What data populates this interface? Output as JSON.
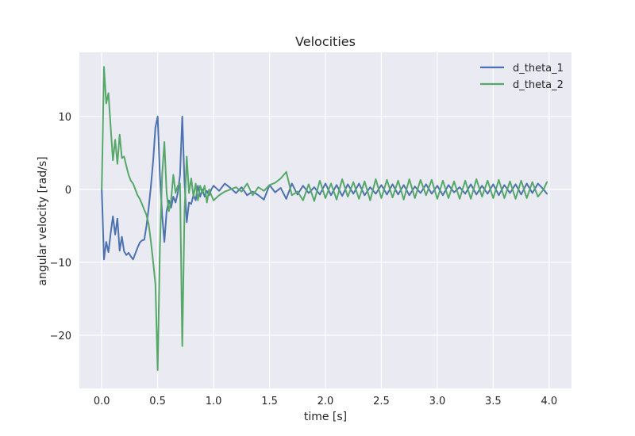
{
  "chart_data": {
    "type": "line",
    "title": "Velocities",
    "xlabel": "time [s]",
    "ylabel": "angular velocity [rad/s]",
    "xlim": [
      -0.2,
      4.2
    ],
    "ylim": [
      -27.3,
      18.8
    ],
    "xticks": [
      0.0,
      0.5,
      1.0,
      1.5,
      2.0,
      2.5,
      3.0,
      3.5,
      4.0
    ],
    "xtick_labels": [
      "0.0",
      "0.5",
      "1.0",
      "1.5",
      "2.0",
      "2.5",
      "3.0",
      "3.5",
      "4.0"
    ],
    "yticks": [
      -20,
      -10,
      0,
      10
    ],
    "ytick_labels": [
      "−20",
      "−10",
      "0",
      "10"
    ],
    "grid": true,
    "legend_position": "top-right",
    "colors": {
      "background": "#eaeaf2",
      "grid": "#ffffff",
      "d_theta_1": "#4c72b0",
      "d_theta_2": "#55a868"
    },
    "series": [
      {
        "name": "d_theta_1",
        "color": "#4c72b0",
        "x": [
          0.0,
          0.02,
          0.04,
          0.06,
          0.08,
          0.1,
          0.12,
          0.14,
          0.16,
          0.18,
          0.2,
          0.22,
          0.24,
          0.26,
          0.28,
          0.3,
          0.32,
          0.34,
          0.36,
          0.38,
          0.4,
          0.42,
          0.44,
          0.46,
          0.48,
          0.5,
          0.52,
          0.54,
          0.56,
          0.58,
          0.6,
          0.62,
          0.64,
          0.66,
          0.68,
          0.7,
          0.72,
          0.74,
          0.76,
          0.78,
          0.8,
          0.82,
          0.84,
          0.86,
          0.88,
          0.9,
          0.92,
          0.94,
          0.96,
          0.98,
          1.0,
          1.05,
          1.1,
          1.15,
          1.2,
          1.25,
          1.3,
          1.35,
          1.4,
          1.45,
          1.5,
          1.55,
          1.6,
          1.65,
          1.7,
          1.75,
          1.8,
          1.85,
          1.9,
          1.95,
          2.0,
          2.05,
          2.1,
          2.15,
          2.2,
          2.25,
          2.3,
          2.35,
          2.4,
          2.45,
          2.5,
          2.55,
          2.6,
          2.65,
          2.7,
          2.75,
          2.8,
          2.85,
          2.9,
          2.95,
          3.0,
          3.05,
          3.1,
          3.15,
          3.2,
          3.25,
          3.3,
          3.35,
          3.4,
          3.45,
          3.5,
          3.55,
          3.6,
          3.65,
          3.7,
          3.75,
          3.8,
          3.85,
          3.9,
          3.95,
          3.98
        ],
        "y": [
          0.0,
          -9.6,
          -7.2,
          -8.6,
          -6.0,
          -3.7,
          -6.2,
          -4.0,
          -8.4,
          -6.5,
          -8.5,
          -9.0,
          -8.7,
          -9.2,
          -9.6,
          -8.8,
          -8.0,
          -7.3,
          -7.0,
          -6.9,
          -5.0,
          -2.5,
          0.5,
          4.0,
          8.5,
          10.0,
          2.0,
          -3.5,
          -7.2,
          -3.0,
          -1.5,
          -2.5,
          -1.0,
          -1.8,
          -0.5,
          2.0,
          10.0,
          1.0,
          -4.5,
          -1.8,
          -2.0,
          -0.8,
          -1.5,
          0.5,
          -1.0,
          0.0,
          -1.0,
          -0.2,
          -0.8,
          0.0,
          0.5,
          -0.2,
          0.8,
          0.2,
          -0.5,
          0.3,
          -0.8,
          -0.3,
          -0.8,
          -1.4,
          0.6,
          -0.4,
          0.2,
          -1.3,
          0.8,
          -0.7,
          0.5,
          -0.5,
          0.3,
          -0.7,
          0.8,
          -0.8,
          0.6,
          -0.9,
          0.7,
          -0.6,
          0.8,
          -0.8,
          0.3,
          -0.6,
          0.6,
          -0.7,
          0.7,
          -0.7,
          0.6,
          -0.8,
          0.4,
          -0.5,
          0.7,
          -0.6,
          0.5,
          -0.8,
          0.6,
          -0.4,
          0.3,
          -0.6,
          0.7,
          -0.7,
          0.5,
          -0.6,
          0.7,
          -0.8,
          0.6,
          -0.5,
          0.7,
          -0.7,
          0.8,
          -0.5,
          0.8,
          0.0,
          -0.6
        ]
      },
      {
        "name": "d_theta_2",
        "color": "#55a868",
        "x": [
          0.0,
          0.02,
          0.04,
          0.06,
          0.08,
          0.1,
          0.12,
          0.14,
          0.16,
          0.18,
          0.2,
          0.22,
          0.24,
          0.26,
          0.28,
          0.3,
          0.32,
          0.34,
          0.36,
          0.38,
          0.4,
          0.42,
          0.44,
          0.46,
          0.48,
          0.5,
          0.52,
          0.54,
          0.56,
          0.58,
          0.6,
          0.62,
          0.64,
          0.66,
          0.68,
          0.7,
          0.72,
          0.74,
          0.76,
          0.78,
          0.8,
          0.82,
          0.84,
          0.86,
          0.88,
          0.9,
          0.92,
          0.94,
          0.96,
          0.98,
          1.0,
          1.05,
          1.1,
          1.15,
          1.2,
          1.25,
          1.3,
          1.35,
          1.4,
          1.45,
          1.5,
          1.55,
          1.6,
          1.65,
          1.7,
          1.75,
          1.8,
          1.85,
          1.9,
          1.95,
          2.0,
          2.05,
          2.1,
          2.15,
          2.2,
          2.25,
          2.3,
          2.35,
          2.4,
          2.45,
          2.5,
          2.55,
          2.6,
          2.65,
          2.7,
          2.75,
          2.8,
          2.85,
          2.9,
          2.95,
          3.0,
          3.05,
          3.1,
          3.15,
          3.2,
          3.25,
          3.3,
          3.35,
          3.4,
          3.45,
          3.5,
          3.55,
          3.6,
          3.65,
          3.7,
          3.75,
          3.8,
          3.85,
          3.9,
          3.95,
          3.98
        ],
        "y": [
          0.0,
          16.8,
          11.8,
          13.2,
          8.5,
          4.0,
          6.8,
          3.5,
          7.5,
          4.3,
          4.5,
          3.2,
          2.0,
          1.2,
          0.8,
          0.0,
          -0.8,
          -1.3,
          -2.0,
          -2.8,
          -3.5,
          -4.8,
          -7.2,
          -10.0,
          -13.0,
          -24.8,
          -8.0,
          2.0,
          6.5,
          -0.5,
          -3.0,
          -1.5,
          2.0,
          -0.5,
          0.5,
          0.8,
          -21.5,
          -3.0,
          4.5,
          -0.5,
          1.5,
          -1.0,
          0.8,
          -1.5,
          0.5,
          -0.5,
          0.5,
          -1.8,
          0.0,
          -0.8,
          -1.5,
          -0.8,
          -0.3,
          0.0,
          0.3,
          -0.3,
          0.8,
          -0.8,
          0.3,
          -0.2,
          0.6,
          0.9,
          1.5,
          2.4,
          -0.8,
          -0.3,
          -1.5,
          0.7,
          -1.6,
          1.2,
          -1.2,
          0.8,
          -1.4,
          1.4,
          -1.0,
          1.0,
          -1.3,
          1.1,
          -1.5,
          1.4,
          -1.2,
          1.3,
          -1.1,
          1.2,
          -1.4,
          1.4,
          -1.2,
          1.3,
          -0.8,
          1.3,
          -1.3,
          1.2,
          -1.2,
          1.1,
          -1.3,
          1.2,
          -1.3,
          1.4,
          -1.0,
          1.2,
          -1.2,
          1.3,
          -1.2,
          1.1,
          -1.3,
          1.2,
          -1.2,
          1.0,
          -1.0,
          0.0,
          1.0
        ]
      }
    ]
  }
}
